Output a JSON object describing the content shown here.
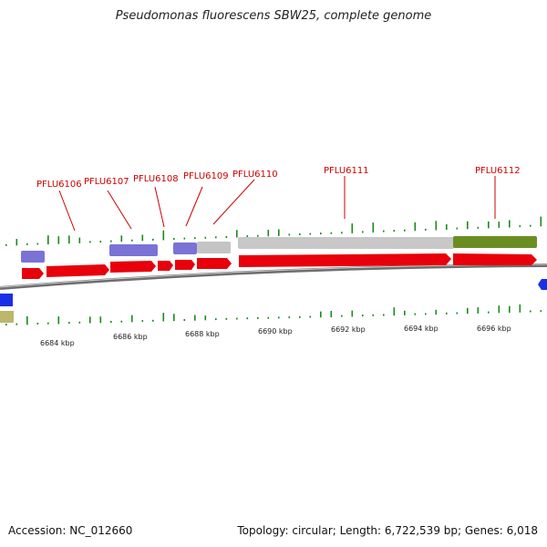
{
  "title": "Pseudomonas fluorescens SBW25, complete genome",
  "footer": {
    "accession": "Accession: NC_012660",
    "info": "Topology: circular; Length: 6,722,539 bp; Genes: 6,018"
  },
  "colors": {
    "cds": "#e8000b",
    "gene_purple": "#7b72d6",
    "gene_grey": "#c0c0c0",
    "gene_olive": "#6b8e23",
    "gene_blue": "#1a2ee6",
    "gene_khaki": "#bdb76b",
    "label": "#cc0000",
    "tick": "#1a8a1a",
    "backbone": "#777777"
  },
  "gene_labels": [
    "PFLU6106",
    "PFLU6107",
    "PFLU6108",
    "PFLU6109",
    "PFLU6110",
    "PFLU6111",
    "PFLU6112"
  ],
  "scale_labels": [
    "6684 kbp",
    "6686 kbp",
    "6688 kbp",
    "6690 kbp",
    "6692 kbp",
    "6694 kbp",
    "6696 kbp"
  ]
}
